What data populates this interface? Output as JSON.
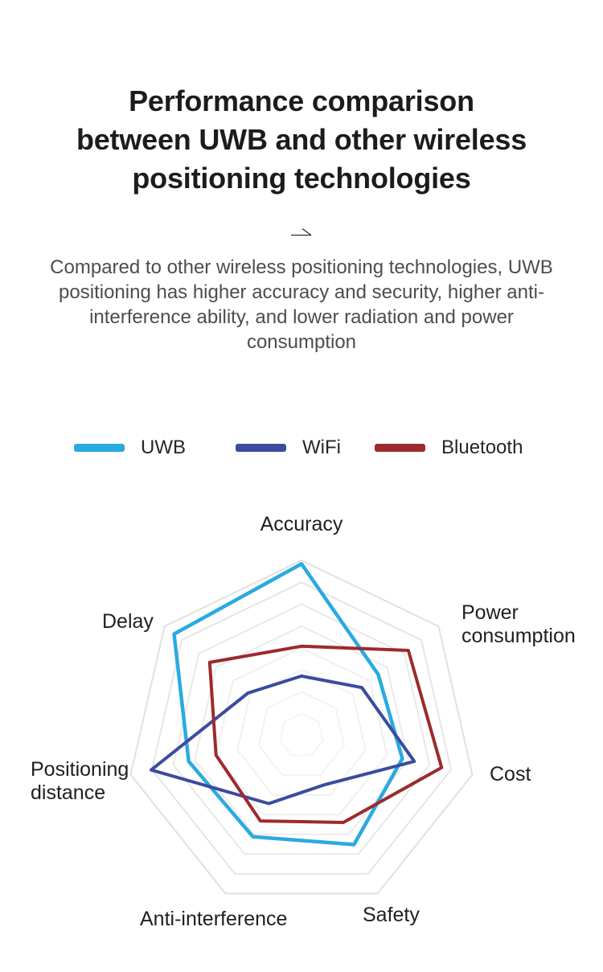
{
  "header": {
    "title_lines": [
      "Performance comparison",
      "between UWB and other wireless",
      "positioning technologies"
    ],
    "subtitle": "Compared to other wireless positioning technologies, UWB positioning has higher accuracy and security, higher anti-interference ability, and lower radiation and power consumption"
  },
  "chart_data": {
    "type": "radar",
    "title": "",
    "categories": [
      "Accuracy",
      "Power consumption",
      "Cost",
      "Safety",
      "Anti-interference",
      "Positioning distance",
      "Delay"
    ],
    "max": 100,
    "grid_rings": 8,
    "grid_shape": "heptagon",
    "grid_color": "#e3e3e3",
    "legend_position": "top",
    "start_axis": "Accuracy",
    "direction": "clockwise",
    "series": [
      {
        "name": "UWB",
        "color": "#29aae1",
        "stroke_width": 4.5,
        "values": [
          98,
          56,
          59,
          69,
          64,
          66,
          93
        ]
      },
      {
        "name": "WiFi",
        "color": "#3c4b9e",
        "stroke_width": 4,
        "values": [
          34,
          44,
          66,
          31,
          43,
          88,
          39
        ]
      },
      {
        "name": "Bluetooth",
        "color": "#9d2a2e",
        "stroke_width": 4,
        "values": [
          51,
          78,
          82,
          55,
          54,
          50,
          67
        ]
      }
    ]
  }
}
